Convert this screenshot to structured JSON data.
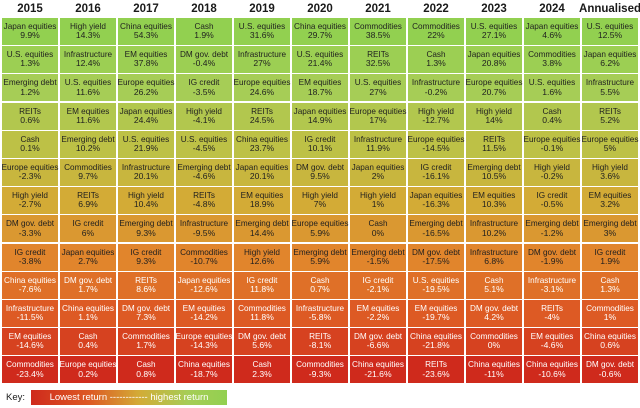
{
  "chart_data": {
    "type": "table",
    "columns": [
      "2015",
      "2016",
      "2017",
      "2018",
      "2019",
      "2020",
      "2021",
      "2022",
      "2023",
      "2024",
      "Annualised"
    ],
    "rows": [
      [
        [
          "Japan equities",
          "9.9%"
        ],
        [
          "High yield",
          "14.3%"
        ],
        [
          "China equities",
          "54.3%"
        ],
        [
          "Cash",
          "1.9%"
        ],
        [
          "U.S. equities",
          "31.6%"
        ],
        [
          "China equities",
          "29.7%"
        ],
        [
          "Commodities",
          "38.5%"
        ],
        [
          "Commodities",
          "22%"
        ],
        [
          "U.S. equities",
          "27.1%"
        ],
        [
          "Japan equities",
          "4.6%"
        ],
        [
          "U.S. equities",
          "12.5%"
        ]
      ],
      [
        [
          "U.S. equities",
          "1.3%"
        ],
        [
          "Infrastructure",
          "12.4%"
        ],
        [
          "EM equities",
          "37.8%"
        ],
        [
          "DM gov. debt",
          "-0.4%"
        ],
        [
          "Infrastructure",
          "27%"
        ],
        [
          "U.S. equities",
          "21.4%"
        ],
        [
          "REITs",
          "32.5%"
        ],
        [
          "Cash",
          "1.3%"
        ],
        [
          "Japan equities",
          "20.8%"
        ],
        [
          "Commodities",
          "3.8%"
        ],
        [
          "Japan equities",
          "6.2%"
        ]
      ],
      [
        [
          "Emerging debt",
          "1.2%"
        ],
        [
          "U.S. equities",
          "11.6%"
        ],
        [
          "Europe equities",
          "26.2%"
        ],
        [
          "IG credit",
          "-3.5%"
        ],
        [
          "Europe equities",
          "24.6%"
        ],
        [
          "EM equities",
          "18.7%"
        ],
        [
          "U.S. equities",
          "27%"
        ],
        [
          "Infrastructure",
          "-0.2%"
        ],
        [
          "Europe equities",
          "20.7%"
        ],
        [
          "U.S. equities",
          "1.6%"
        ],
        [
          "Infrastructure",
          "5.5%"
        ]
      ],
      [
        [
          "REITs",
          "0.6%"
        ],
        [
          "EM equities",
          "11.6%"
        ],
        [
          "Japan equities",
          "24.4%"
        ],
        [
          "High yield",
          "-4.1%"
        ],
        [
          "REITs",
          "24.5%"
        ],
        [
          "Japan equities",
          "14.9%"
        ],
        [
          "Europe equities",
          "17%"
        ],
        [
          "High yield",
          "-12.7%"
        ],
        [
          "High yield",
          "14%"
        ],
        [
          "Cash",
          "0.4%"
        ],
        [
          "REITs",
          "5.2%"
        ]
      ],
      [
        [
          "Cash",
          "0.1%"
        ],
        [
          "Emerging debt",
          "10.2%"
        ],
        [
          "U.S. equities",
          "21.9%"
        ],
        [
          "U.S. equities",
          "-4.5%"
        ],
        [
          "China equities",
          "23.7%"
        ],
        [
          "IG credit",
          "10.1%"
        ],
        [
          "Infrastructure",
          "11.9%"
        ],
        [
          "Europe equities",
          "-14.5%"
        ],
        [
          "REITs",
          "11.5%"
        ],
        [
          "Europe equities",
          "-0.1%"
        ],
        [
          "Europe equities",
          "5%"
        ]
      ],
      [
        [
          "Europe equities",
          "-2.3%"
        ],
        [
          "Commodities",
          "9.7%"
        ],
        [
          "Infrastructure",
          "20.1%"
        ],
        [
          "Emerging debt",
          "-4.6%"
        ],
        [
          "Japan equities",
          "20.1%"
        ],
        [
          "DM gov. debt",
          "9.5%"
        ],
        [
          "Japan equities",
          "2%"
        ],
        [
          "IG credit",
          "-16.1%"
        ],
        [
          "Emerging debt",
          "10.5%"
        ],
        [
          "High yield",
          "-0.2%"
        ],
        [
          "High yield",
          "3.6%"
        ]
      ],
      [
        [
          "High yield",
          "-2.7%"
        ],
        [
          "REITs",
          "6.9%"
        ],
        [
          "High yield",
          "10.4%"
        ],
        [
          "REITs",
          "-4.8%"
        ],
        [
          "EM equities",
          "18.9%"
        ],
        [
          "High yield",
          "7%"
        ],
        [
          "High yield",
          "1%"
        ],
        [
          "Japan equities",
          "-16.3%"
        ],
        [
          "EM equities",
          "10.3%"
        ],
        [
          "IG credit",
          "-0.5%"
        ],
        [
          "EM equities",
          "3.2%"
        ]
      ],
      [
        [
          "DM gov. debt",
          "-3.3%"
        ],
        [
          "IG credit",
          "6%"
        ],
        [
          "Emerging debt",
          "9.3%"
        ],
        [
          "Infrastructure",
          "-9.5%"
        ],
        [
          "Emerging debt",
          "14.4%"
        ],
        [
          "Europe equities",
          "5.9%"
        ],
        [
          "Cash",
          "0%"
        ],
        [
          "Emerging debt",
          "-16.5%"
        ],
        [
          "Infrastructure",
          "10.2%"
        ],
        [
          "Emerging debt",
          "-1.2%"
        ],
        [
          "Emerging debt",
          "3%"
        ]
      ],
      [
        [
          "IG credit",
          "-3.8%"
        ],
        [
          "Japan equities",
          "2.7%"
        ],
        [
          "IG credit",
          "9.3%"
        ],
        [
          "Commodities",
          "-10.7%"
        ],
        [
          "High yield",
          "12.6%"
        ],
        [
          "Emerging debt",
          "5.9%"
        ],
        [
          "Emerging debt",
          "-1.5%"
        ],
        [
          "DM gov. debt",
          "-17.5%"
        ],
        [
          "Infrastructure",
          "6.8%"
        ],
        [
          "DM gov. debt",
          "-1.9%"
        ],
        [
          "IG credit",
          "1.9%"
        ]
      ],
      [
        [
          "China equities",
          "-7.6%"
        ],
        [
          "DM gov. debt",
          "1.7%"
        ],
        [
          "REITs",
          "8.6%"
        ],
        [
          "Japan equities",
          "-12.6%"
        ],
        [
          "IG credit",
          "11.8%"
        ],
        [
          "Cash",
          "0.7%"
        ],
        [
          "IG credit",
          "-2.1%"
        ],
        [
          "U.S. equities",
          "-19.5%"
        ],
        [
          "Cash",
          "5.1%"
        ],
        [
          "Infrastructure",
          "-3.1%"
        ],
        [
          "Cash",
          "1.3%"
        ]
      ],
      [
        [
          "Infrastructure",
          "-11.5%"
        ],
        [
          "China equities",
          "1.1%"
        ],
        [
          "DM gov. debt",
          "7.3%"
        ],
        [
          "EM equities",
          "-14.2%"
        ],
        [
          "Commodities",
          "11.8%"
        ],
        [
          "Infrastructure",
          "-5.8%"
        ],
        [
          "EM equities",
          "-2.2%"
        ],
        [
          "EM equities",
          "-19.7%"
        ],
        [
          "DM gov. debt",
          "4.2%"
        ],
        [
          "REITs",
          "-4%"
        ],
        [
          "Commodities",
          "1%"
        ]
      ],
      [
        [
          "EM equities",
          "-14.6%"
        ],
        [
          "Cash",
          "0.4%"
        ],
        [
          "Commodities",
          "1.7%"
        ],
        [
          "Europe equities",
          "-14.3%"
        ],
        [
          "DM gov. debt",
          "5.6%"
        ],
        [
          "REITs",
          "-8.1%"
        ],
        [
          "DM gov. debt",
          "-6.6%"
        ],
        [
          "China equities",
          "-21.8%"
        ],
        [
          "Commodities",
          "0%"
        ],
        [
          "EM equities",
          "-4.6%"
        ],
        [
          "China equities",
          "0.6%"
        ]
      ],
      [
        [
          "Commodities",
          "-23.4%"
        ],
        [
          "Europe equities",
          "0.2%"
        ],
        [
          "Cash",
          "0.8%"
        ],
        [
          "China equities",
          "-18.7%"
        ],
        [
          "Cash",
          "2.3%"
        ],
        [
          "Commodities",
          "-9.3%"
        ],
        [
          "China equities",
          "-21.6%"
        ],
        [
          "REITs",
          "-23.6%"
        ],
        [
          "China equities",
          "-11%"
        ],
        [
          "China equities",
          "-10.6%"
        ],
        [
          "DM gov. debt",
          "-0.6%"
        ]
      ]
    ],
    "color_scale": [
      "#cf2a1c",
      "#dd5a24",
      "#e1852c",
      "#d3ab36",
      "#bdc146",
      "#a6cd56",
      "#92d050"
    ]
  },
  "key": {
    "label": "Key:",
    "bar_text": "Lowest return ------------ highest return"
  }
}
